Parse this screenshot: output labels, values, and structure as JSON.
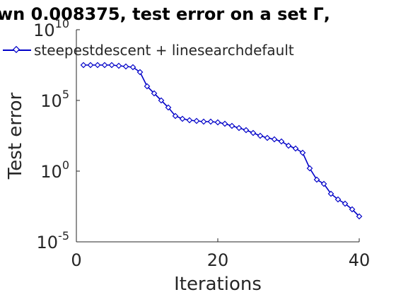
{
  "chart_data": {
    "type": "line",
    "title": "wn 0.008375, test error on a set  Γ,",
    "xlabel": "Iterations",
    "ylabel": "Test error",
    "y_scale": "log",
    "xlim": [
      0,
      40
    ],
    "ylim_exponents": [
      -5,
      10
    ],
    "x_ticks": [
      0,
      20,
      40
    ],
    "x_tick_labels": [
      "0",
      "20",
      "40"
    ],
    "y_tick_exponents": [
      -5,
      0,
      5,
      10
    ],
    "y_tick_labels": [
      {
        "base": "10",
        "exp": "-5"
      },
      {
        "base": "10",
        "exp": "0"
      },
      {
        "base": "10",
        "exp": "5"
      },
      {
        "base": "10",
        "exp": "10"
      }
    ],
    "grid": false,
    "legend_position": "top-left",
    "series": [
      {
        "name": "steepestdescent + linesearchdefault",
        "color": "#0000c8",
        "marker": "diamond",
        "x": [
          1,
          2,
          3,
          4,
          5,
          6,
          7,
          8,
          9,
          10,
          11,
          12,
          13,
          14,
          15,
          16,
          17,
          18,
          19,
          20,
          21,
          22,
          23,
          24,
          25,
          26,
          27,
          28,
          29,
          30,
          31,
          32,
          33,
          34,
          35,
          36,
          37,
          38,
          39,
          40
        ],
        "y_log10": [
          7.5,
          7.5,
          7.5,
          7.5,
          7.5,
          7.45,
          7.4,
          7.35,
          7.0,
          6.0,
          5.5,
          5.0,
          4.5,
          3.9,
          3.7,
          3.6,
          3.55,
          3.5,
          3.5,
          3.45,
          3.35,
          3.2,
          3.05,
          2.9,
          2.7,
          2.5,
          2.35,
          2.25,
          2.1,
          1.8,
          1.6,
          1.3,
          0.2,
          -0.6,
          -0.9,
          -1.6,
          -2.0,
          -2.3,
          -2.7,
          -3.2
        ]
      }
    ]
  }
}
